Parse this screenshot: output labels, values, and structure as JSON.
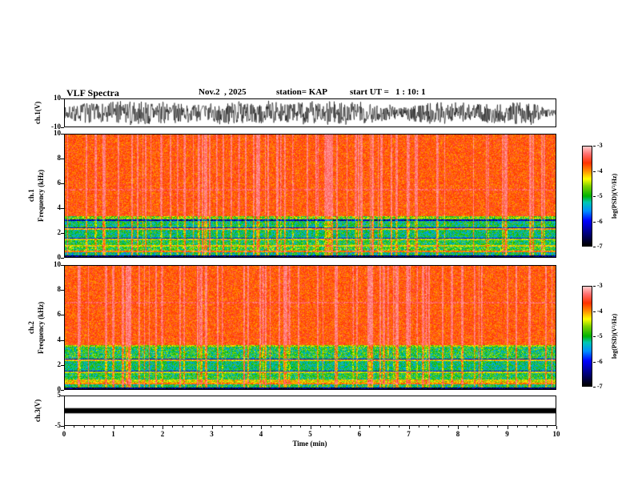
{
  "header": {
    "title": "VLF Spectra",
    "date": "Nov.2  , 2025",
    "station": "station= KAP",
    "start_ut": "start UT =   1 : 10: 1"
  },
  "x_axis": {
    "label": "Time (min)",
    "min": 0,
    "max": 10,
    "major_ticks": [
      0,
      1,
      2,
      3,
      4,
      5,
      6,
      7,
      8,
      9,
      10
    ]
  },
  "colorbar": {
    "label": "log(PSD)(V²/Hz)",
    "ticks": [
      -3,
      -4,
      -5,
      -6,
      -7
    ],
    "max": -3,
    "min": -7,
    "stops": [
      {
        "v": -7.0,
        "color": "#000000"
      },
      {
        "v": -6.5,
        "color": "#000080"
      },
      {
        "v": -6.0,
        "color": "#0000ff"
      },
      {
        "v": -5.6,
        "color": "#0090ff"
      },
      {
        "v": -5.25,
        "color": "#00c8b4"
      },
      {
        "v": -5.0,
        "color": "#00b400"
      },
      {
        "v": -4.6,
        "color": "#7dd200"
      },
      {
        "v": -4.3,
        "color": "#ffff00"
      },
      {
        "v": -4.0,
        "color": "#ff9600"
      },
      {
        "v": -3.65,
        "color": "#ff3200"
      },
      {
        "v": -3.3,
        "color": "#ff6e6e"
      },
      {
        "v": -3.0,
        "color": "#ffc8c8"
      }
    ]
  },
  "chart_data": [
    {
      "id": "ch1_waveform",
      "type": "line",
      "ylabel": "ch.1(V)",
      "ylim": [
        -10,
        10
      ],
      "yticks": [
        10,
        -10
      ],
      "xlim": [
        0,
        10
      ],
      "series_color": "#000000",
      "description": "Dense broadband noisy time series filling the panel, envelope varying between about ±3 V and ±9 V over the 10 min record",
      "amplitude_typical": 5,
      "amplitude_peak": 9,
      "seed": 7
    },
    {
      "id": "ch1_spectrogram",
      "type": "heatmap",
      "ylabel_channel": "ch.1",
      "ylabel": "Frequency (kHz)",
      "ylim": [
        0,
        10
      ],
      "yticks": [
        0,
        2,
        4,
        6,
        8,
        10
      ],
      "xlim": [
        0,
        10
      ],
      "zlim": [
        -7,
        -3
      ],
      "background_level": -3.72,
      "bands": [
        {
          "fmin": 3.35,
          "fmax": 10.0,
          "level": -3.72,
          "jitter": 0.33
        },
        {
          "fmin": 3.05,
          "fmax": 3.35,
          "level": -4.7,
          "jitter": 0.6
        },
        {
          "fmin": 2.95,
          "fmax": 3.05,
          "level": -6.3,
          "jitter": 0.5
        },
        {
          "fmin": 2.35,
          "fmax": 2.95,
          "level": -5.1,
          "jitter": 0.55
        },
        {
          "fmin": 2.2,
          "fmax": 2.35,
          "level": -4.1,
          "jitter": 0.4
        },
        {
          "fmin": 1.55,
          "fmax": 2.2,
          "level": -5.15,
          "jitter": 0.5
        },
        {
          "fmin": 1.4,
          "fmax": 1.55,
          "level": -4.4,
          "jitter": 0.4
        },
        {
          "fmin": 1.0,
          "fmax": 1.4,
          "level": -5.0,
          "jitter": 0.55
        },
        {
          "fmin": 0.85,
          "fmax": 1.0,
          "level": -4.3,
          "jitter": 0.4
        },
        {
          "fmin": 0.5,
          "fmax": 0.85,
          "level": -4.9,
          "jitter": 0.6
        },
        {
          "fmin": 0.38,
          "fmax": 0.5,
          "level": -3.9,
          "jitter": 0.35
        },
        {
          "fmin": 0.12,
          "fmax": 0.38,
          "level": -5.2,
          "jitter": 0.6
        },
        {
          "fmin": 0.0,
          "fmax": 0.12,
          "level": -6.6,
          "jitter": 0.4
        }
      ],
      "lines": [
        {
          "f": 5.5,
          "width": 0.05,
          "level": -3.4
        },
        {
          "f": 2.36,
          "width": 0.03,
          "level": -6.2
        },
        {
          "f": 1.56,
          "width": 0.03,
          "level": -6.0
        }
      ],
      "streaks": {
        "count": 85,
        "max_boost": 1.7
      },
      "seed": 101
    },
    {
      "id": "ch2_spectrogram",
      "type": "heatmap",
      "ylabel_channel": "ch.2",
      "ylabel": "Frequency (kHz)",
      "ylim": [
        0,
        10
      ],
      "yticks": [
        0,
        2,
        4,
        6,
        8,
        10
      ],
      "xlim": [
        0,
        10
      ],
      "zlim": [
        -7,
        -3
      ],
      "background_level": -3.72,
      "bands": [
        {
          "fmin": 3.6,
          "fmax": 10.0,
          "level": -3.72,
          "jitter": 0.33
        },
        {
          "fmin": 3.45,
          "fmax": 3.6,
          "level": -4.5,
          "jitter": 0.5
        },
        {
          "fmin": 2.45,
          "fmax": 3.45,
          "level": -5.0,
          "jitter": 0.6
        },
        {
          "fmin": 2.3,
          "fmax": 2.45,
          "level": -4.2,
          "jitter": 0.4
        },
        {
          "fmin": 1.45,
          "fmax": 2.3,
          "level": -5.15,
          "jitter": 0.5
        },
        {
          "fmin": 1.3,
          "fmax": 1.45,
          "level": -4.4,
          "jitter": 0.4
        },
        {
          "fmin": 0.75,
          "fmax": 1.3,
          "level": -5.0,
          "jitter": 0.55
        },
        {
          "fmin": 0.55,
          "fmax": 0.75,
          "level": -4.3,
          "jitter": 0.5
        },
        {
          "fmin": 0.42,
          "fmax": 0.55,
          "level": -3.9,
          "jitter": 0.35
        },
        {
          "fmin": 0.12,
          "fmax": 0.42,
          "level": -5.1,
          "jitter": 0.6
        },
        {
          "fmin": 0.0,
          "fmax": 0.12,
          "level": -6.6,
          "jitter": 0.4
        }
      ],
      "lines": [
        {
          "f": 7.0,
          "width": 0.05,
          "level": -3.4
        },
        {
          "f": 2.46,
          "width": 0.03,
          "level": -6.2
        },
        {
          "f": 1.46,
          "width": 0.03,
          "level": -6.0
        }
      ],
      "streaks": {
        "count": 85,
        "max_boost": 1.7
      },
      "seed": 202
    },
    {
      "id": "ch3_waveform",
      "type": "line",
      "ylabel": "ch.3(V)",
      "ylim": [
        -5,
        5
      ],
      "yticks": [
        5,
        -5
      ],
      "xlim": [
        0,
        10
      ],
      "series_color": "#000000",
      "description": "Saturated constant-amplitude signal rendered as a solid black horizontal band around 0 V for the full 10 minutes",
      "band": [
        -0.9,
        0.9
      ]
    }
  ]
}
